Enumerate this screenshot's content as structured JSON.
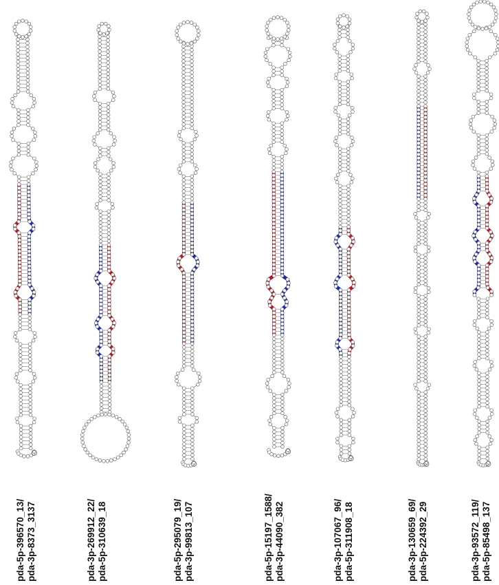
{
  "colors": {
    "backbone": "#9a9a9a",
    "nucleotide_fill": "#ffffff",
    "nucleotide_stroke": "#6a6a6a",
    "mature_red": "#c0111a",
    "mature_blue": "#1a24b5",
    "label_text": "#111111"
  },
  "structures": [
    {
      "line1": "pda-5p-396570_13/",
      "line2": "pda-3p-8373_3137",
      "left_strand": "red",
      "right_strand": "blue"
    },
    {
      "line1": "pda-3p-269912_22/",
      "line2": "pda-5p-310639_18",
      "left_strand": "blue",
      "right_strand": "red"
    },
    {
      "line1": "pda-5p-295079_19/",
      "line2": "pda-3p-99813_107",
      "left_strand": "red",
      "right_strand": "blue"
    },
    {
      "line1": "pda-5p-15197_1588/",
      "line2": "pda-3p-44090_382",
      "left_strand": "red",
      "right_strand": "blue"
    },
    {
      "line1": "pda-3p-107067_96/",
      "line2": "pda-5p-311908_18",
      "left_strand": "blue",
      "right_strand": "red"
    },
    {
      "line1": "pda-3p-130659_69/",
      "line2": "pda-5p-224392_29",
      "left_strand": "blue",
      "right_strand": "red"
    },
    {
      "line1": "pda-3p-93572_119/",
      "line2": "pda-5p-85498_137",
      "left_strand": "blue",
      "right_strand": "red"
    }
  ]
}
